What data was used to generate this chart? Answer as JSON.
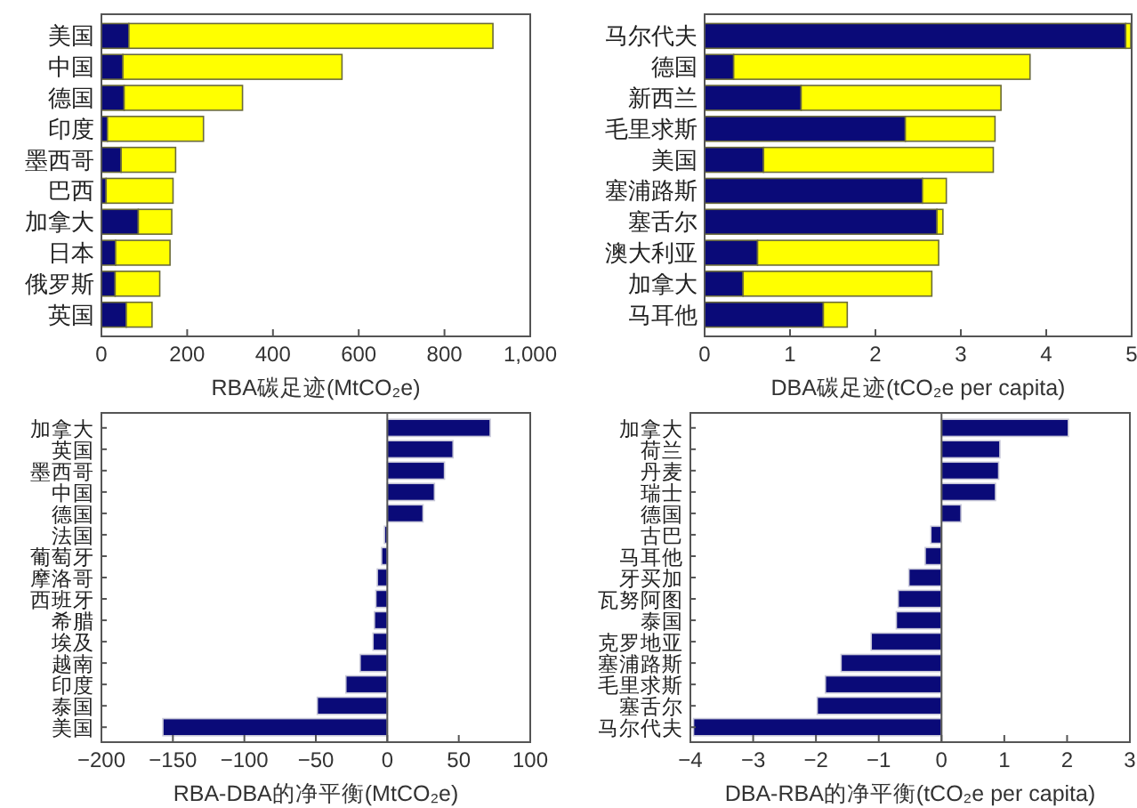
{
  "chart_data": [
    {
      "type": "bar",
      "orientation": "horizontal",
      "stacked": true,
      "categories": [
        "美国",
        "中国",
        "德国",
        "印度",
        "墨西哥",
        "巴西",
        "加拿大",
        "日本",
        "俄罗斯",
        "英国"
      ],
      "xlabel": "RBA碳足迹(MtCO₂e)",
      "xlim": [
        0,
        1000
      ],
      "xticks": [
        0,
        200,
        400,
        600,
        800,
        {
          "value": 1000,
          "label": "1,000"
        }
      ],
      "series": [
        {
          "color": "#0a0a78",
          "values": [
            64,
            50,
            53,
            14,
            46,
            11,
            86,
            33,
            32,
            58
          ]
        },
        {
          "color": "#ffff00",
          "values": [
            849,
            511,
            276,
            224,
            127,
            156,
            78,
            127,
            104,
            60
          ]
        }
      ]
    },
    {
      "type": "bar",
      "orientation": "horizontal",
      "stacked": true,
      "categories": [
        "马尔代夫",
        "德国",
        "新西兰",
        "毛里求斯",
        "美国",
        "塞浦路斯",
        "塞舌尔",
        "澳大利亚",
        "加拿大",
        "马耳他"
      ],
      "xlabel": "DBA碳足迹(tCO₂e per capita)",
      "xlim": [
        0,
        5
      ],
      "xticks": [
        0,
        1,
        2,
        3,
        4,
        5
      ],
      "series": [
        {
          "color": "#0a0a78",
          "values": [
            4.93,
            0.34,
            1.13,
            2.35,
            0.69,
            2.55,
            2.72,
            0.62,
            0.45,
            1.39
          ]
        },
        {
          "color": "#ffff00",
          "values": [
            0.06,
            3.47,
            2.34,
            1.05,
            2.69,
            0.28,
            0.07,
            2.12,
            2.21,
            0.28
          ]
        }
      ]
    },
    {
      "type": "bar",
      "orientation": "horizontal",
      "categories": [
        "加拿大",
        "英国",
        "墨西哥",
        "中国",
        "德国",
        "法国",
        "葡萄牙",
        "摩洛哥",
        "西班牙",
        "希腊",
        "埃及",
        "越南",
        "印度",
        "泰国",
        "美国"
      ],
      "xlabel": "RBA-DBA的净平衡(MtCO₂e)",
      "xlim": [
        -200,
        100
      ],
      "xticks": [
        {
          "value": -200,
          "label": "−200"
        },
        {
          "value": -150,
          "label": "−150"
        },
        {
          "value": -100,
          "label": "−100"
        },
        {
          "value": -50,
          "label": "−50"
        },
        0,
        50,
        100
      ],
      "series": [
        {
          "color": "#0a0a78",
          "values": [
            72,
            46,
            40,
            33,
            25,
            -2,
            -4,
            -7,
            -8,
            -9,
            -10,
            -19,
            -29,
            -49,
            -157
          ]
        }
      ]
    },
    {
      "type": "bar",
      "orientation": "horizontal",
      "categories": [
        "加拿大",
        "荷兰",
        "丹麦",
        "瑞士",
        "德国",
        "古巴",
        "马耳他",
        "牙买加",
        "瓦努阿图",
        "泰国",
        "克罗地亚",
        "塞浦路斯",
        "毛里求斯",
        "塞舌尔",
        "马尔代夫"
      ],
      "xlabel": "DBA-RBA的净平衡(tCO₂e per capita)",
      "xlim": [
        -4,
        3
      ],
      "xticks": [
        {
          "value": -4,
          "label": "−4"
        },
        {
          "value": -3,
          "label": "−3"
        },
        {
          "value": -2,
          "label": "−2"
        },
        {
          "value": -1,
          "label": "−1"
        },
        0,
        1,
        2,
        3
      ],
      "series": [
        {
          "color": "#0a0a78",
          "values": [
            2.02,
            0.93,
            0.91,
            0.86,
            0.31,
            -0.17,
            -0.26,
            -0.52,
            -0.69,
            -0.72,
            -1.12,
            -1.6,
            -1.85,
            -1.98,
            -3.95
          ]
        }
      ]
    }
  ]
}
